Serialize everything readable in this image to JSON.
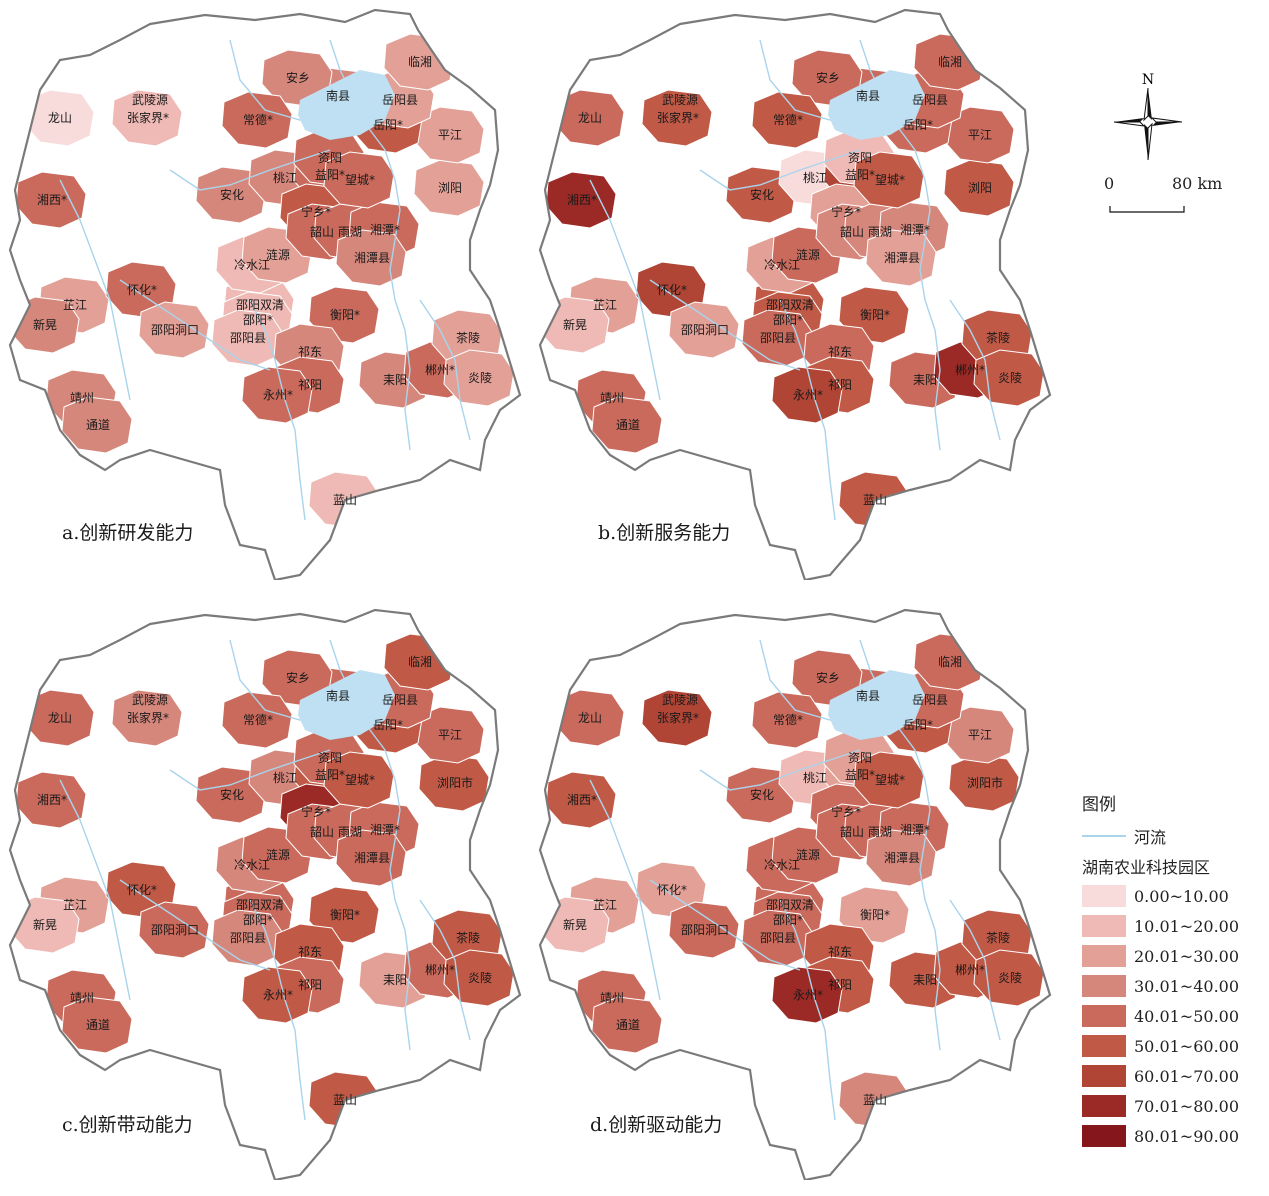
{
  "panels": [
    {
      "id": "a",
      "caption": "a.创新研发能力",
      "levels": {
        "龙山": 0,
        "武陵源": -1,
        "张家界*": 1,
        "湘西*": 4,
        "芷江": 2,
        "怀化*": 4,
        "新晃": 3,
        "靖州": 3,
        "通道": 3,
        "邵阳洞口": 2,
        "邵阳双清": 1,
        "邵阳*": 1,
        "邵阳县": 1,
        "冷水江": 1,
        "涟源": 2,
        "安化": 3,
        "桃江": 3,
        "益阳*": 4,
        "资阳": 4,
        "宁乡*": 5,
        "韶山": 4,
        "雨湖": 4,
        "湘潭*": 4,
        "湘潭县": 3,
        "望城*": 4,
        "浏阳": 2,
        "平江": 2,
        "岳阳*": 5,
        "岳阳县": 2,
        "临湘": 2,
        "南县": 3,
        "安乡": 3,
        "常德*": 4,
        "衡阳*": 4,
        "祁东": 3,
        "祁阳": 4,
        "永州*": 4,
        "耒阳": 3,
        "郴州*": 4,
        "茶陵": 2,
        "炎陵": 2,
        "蓝山": 1
      }
    },
    {
      "id": "b",
      "caption": "b.创新服务能力",
      "levels": {
        "龙山": 4,
        "武陵源": -1,
        "张家界*": 5,
        "湘西*": 7,
        "芷江": 2,
        "怀化*": 6,
        "新晃": 1,
        "靖州": 4,
        "通道": 4,
        "邵阳洞口": 2,
        "邵阳双清": 5,
        "邵阳*": 5,
        "邵阳县": 4,
        "冷水江": 2,
        "涟源": 4,
        "安化": 5,
        "桃江": 0,
        "益阳*": 6,
        "资阳": 1,
        "宁乡*": 2,
        "韶山": 3,
        "雨湖": 3,
        "湘潭*": 3,
        "湘潭县": 2,
        "望城*": 5,
        "浏阳": 5,
        "平江": 4,
        "岳阳*": 4,
        "岳阳县": 4,
        "临湘": 4,
        "南县": 4,
        "安乡": 4,
        "常德*": 5,
        "衡阳*": 5,
        "祁东": 4,
        "祁阳": 5,
        "永州*": 6,
        "耒阳": 4,
        "郴州*": 7,
        "茶陵": 5,
        "炎陵": 5,
        "蓝山": 5
      }
    },
    {
      "id": "c",
      "caption": "c.创新带动能力",
      "levels": {
        "龙山": 4,
        "武陵源": -1,
        "张家界*": 3,
        "湘西*": 4,
        "芷江": 2,
        "怀化*": 5,
        "新晃": 1,
        "靖州": 4,
        "通道": 4,
        "邵阳洞口": 4,
        "邵阳双清": 4,
        "邵阳*": 4,
        "邵阳县": 3,
        "冷水江": 3,
        "涟源": 4,
        "安化": 4,
        "桃江": 3,
        "益阳*": 5,
        "资阳": 4,
        "宁乡*": 7,
        "韶山": 4,
        "雨湖": 4,
        "湘潭*": 4,
        "湘潭县": 4,
        "望城*": 5,
        "浏阳市": 5,
        "平江": 4,
        "岳阳*": 5,
        "岳阳县": 4,
        "临湘": 5,
        "南县": 4,
        "安乡": 4,
        "常德*": 4,
        "衡阳*": 5,
        "祁东": 5,
        "祁阳": 4,
        "永州*": 5,
        "耒阳": 2,
        "郴州*": 4,
        "茶陵": 5,
        "炎陵": 5,
        "蓝山": 5
      }
    },
    {
      "id": "d",
      "caption": "d.创新驱动能力",
      "levels": {
        "龙山": 4,
        "武陵源": -1,
        "张家界*": 6,
        "湘西*": 5,
        "芷江": 2,
        "怀化*": 2,
        "新晃": 1,
        "靖州": 4,
        "通道": 4,
        "邵阳洞口": 4,
        "邵阳双清": 4,
        "邵阳*": 4,
        "邵阳县": 4,
        "冷水江": 4,
        "涟源": 4,
        "安化": 4,
        "桃江": 1,
        "益阳*": 2,
        "资阳": 2,
        "宁乡*": 4,
        "韶山": 4,
        "雨湖": 4,
        "湘潭*": 4,
        "湘潭县": 3,
        "望城*": 5,
        "浏阳市": 5,
        "平江": 3,
        "岳阳*": 5,
        "岳阳县": 4,
        "临湘": 4,
        "南县": 4,
        "安乡": 4,
        "常德*": 4,
        "衡阳*": 2,
        "祁东": 5,
        "祁阳": 5,
        "永州*": 7,
        "耒阳": 5,
        "郴州*": 5,
        "茶陵": 5,
        "炎陵": 5,
        "蓝山": 3
      }
    }
  ],
  "compass_label": "N",
  "scale": {
    "zero": "0",
    "end": "80 km"
  },
  "legend": {
    "title": "图例",
    "river_label": "河流",
    "park_label": "湖南农业科技园区",
    "classes": [
      {
        "label": "0.00~10.00",
        "color": "#f8dcdb"
      },
      {
        "label": "10.01~20.00",
        "color": "#efbab5"
      },
      {
        "label": "20.01~30.00",
        "color": "#e3a097"
      },
      {
        "label": "30.01~40.00",
        "color": "#d6877c"
      },
      {
        "label": "40.01~50.00",
        "color": "#c96a5c"
      },
      {
        "label": "50.01~60.00",
        "color": "#c05946"
      },
      {
        "label": "60.01~70.00",
        "color": "#b04536"
      },
      {
        "label": "70.01~80.00",
        "color": "#9b2a26"
      },
      {
        "label": "80.01~90.00",
        "color": "#84161c"
      }
    ]
  }
}
